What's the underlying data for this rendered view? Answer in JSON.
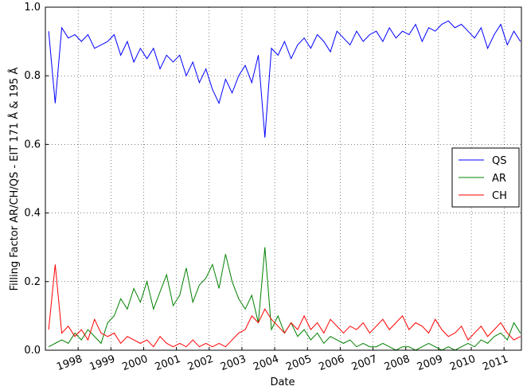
{
  "chart_data": {
    "type": "line",
    "x_label": "Date",
    "y_label": "Filling Factor AR/CH/QS - EIT 171 Å & 195 Å",
    "xlim": [
      1997.0,
      2011.53
    ],
    "ylim": [
      0,
      1
    ],
    "xticks": [
      1998,
      1999,
      2000,
      2001,
      2002,
      2003,
      2004,
      2005,
      2006,
      2007,
      2008,
      2009,
      2010,
      2011
    ],
    "yticks": [
      {
        "value": 0,
        "label": "0.0"
      },
      0.2,
      0.4,
      0.6,
      0.8,
      {
        "value": 1,
        "label": "1.0"
      }
    ],
    "grid": true,
    "legend": "center right",
    "x": [
      1997.1,
      1997.3,
      1997.5,
      1997.7,
      1997.9,
      1998.1,
      1998.3,
      1998.5,
      1998.7,
      1998.9,
      1999.1,
      1999.3,
      1999.5,
      1999.7,
      1999.9,
      2000.1,
      2000.3,
      2000.5,
      2000.7,
      2000.9,
      2001.1,
      2001.3,
      2001.5,
      2001.7,
      2001.9,
      2002.1,
      2002.3,
      2002.5,
      2002.7,
      2002.9,
      2003.1,
      2003.3,
      2003.5,
      2003.7,
      2003.9,
      2004.1,
      2004.3,
      2004.5,
      2004.7,
      2004.9,
      2005.1,
      2005.3,
      2005.5,
      2005.7,
      2005.9,
      2006.1,
      2006.3,
      2006.5,
      2006.7,
      2006.9,
      2007.1,
      2007.3,
      2007.5,
      2007.7,
      2007.9,
      2008.1,
      2008.3,
      2008.5,
      2008.7,
      2008.9,
      2009.1,
      2009.3,
      2009.5,
      2009.7,
      2009.9,
      2010.1,
      2010.3,
      2010.5,
      2010.7,
      2010.9,
      2011.1,
      2011.3,
      2011.5
    ],
    "series": [
      {
        "name": "QS",
        "color": "#0000ff",
        "values": [
          0.93,
          0.72,
          0.94,
          0.91,
          0.92,
          0.9,
          0.92,
          0.88,
          0.89,
          0.9,
          0.92,
          0.86,
          0.9,
          0.84,
          0.88,
          0.85,
          0.88,
          0.82,
          0.86,
          0.84,
          0.86,
          0.8,
          0.84,
          0.78,
          0.82,
          0.76,
          0.72,
          0.79,
          0.75,
          0.8,
          0.83,
          0.78,
          0.86,
          0.62,
          0.88,
          0.86,
          0.9,
          0.85,
          0.89,
          0.91,
          0.88,
          0.92,
          0.9,
          0.87,
          0.93,
          0.91,
          0.89,
          0.93,
          0.9,
          0.92,
          0.93,
          0.9,
          0.94,
          0.91,
          0.93,
          0.92,
          0.95,
          0.9,
          0.94,
          0.93,
          0.95,
          0.96,
          0.94,
          0.95,
          0.93,
          0.91,
          0.94,
          0.88,
          0.92,
          0.95,
          0.89,
          0.93,
          0.9
        ]
      },
      {
        "name": "AR",
        "color": "#008000",
        "values": [
          0.01,
          0.02,
          0.03,
          0.02,
          0.05,
          0.03,
          0.06,
          0.04,
          0.02,
          0.08,
          0.1,
          0.15,
          0.12,
          0.18,
          0.14,
          0.2,
          0.12,
          0.17,
          0.22,
          0.13,
          0.16,
          0.24,
          0.14,
          0.19,
          0.21,
          0.25,
          0.18,
          0.28,
          0.2,
          0.15,
          0.12,
          0.16,
          0.08,
          0.3,
          0.06,
          0.1,
          0.05,
          0.08,
          0.04,
          0.06,
          0.03,
          0.05,
          0.02,
          0.04,
          0.03,
          0.02,
          0.03,
          0.01,
          0.02,
          0.01,
          0.01,
          0.02,
          0.01,
          0.0,
          0.01,
          0.01,
          0.0,
          0.01,
          0.02,
          0.01,
          0.0,
          0.01,
          0.0,
          0.01,
          0.02,
          0.01,
          0.03,
          0.02,
          0.04,
          0.05,
          0.03,
          0.08,
          0.05
        ]
      },
      {
        "name": "CH",
        "color": "#ff0000",
        "values": [
          0.06,
          0.25,
          0.05,
          0.07,
          0.04,
          0.06,
          0.03,
          0.09,
          0.05,
          0.04,
          0.05,
          0.02,
          0.04,
          0.03,
          0.02,
          0.03,
          0.01,
          0.04,
          0.02,
          0.01,
          0.02,
          0.01,
          0.03,
          0.01,
          0.02,
          0.01,
          0.02,
          0.01,
          0.03,
          0.05,
          0.06,
          0.1,
          0.08,
          0.12,
          0.09,
          0.07,
          0.05,
          0.08,
          0.06,
          0.1,
          0.06,
          0.08,
          0.05,
          0.09,
          0.07,
          0.05,
          0.07,
          0.06,
          0.08,
          0.05,
          0.07,
          0.09,
          0.06,
          0.08,
          0.1,
          0.06,
          0.08,
          0.07,
          0.05,
          0.09,
          0.06,
          0.04,
          0.05,
          0.07,
          0.03,
          0.05,
          0.07,
          0.04,
          0.06,
          0.08,
          0.05,
          0.03,
          0.04
        ]
      }
    ]
  }
}
